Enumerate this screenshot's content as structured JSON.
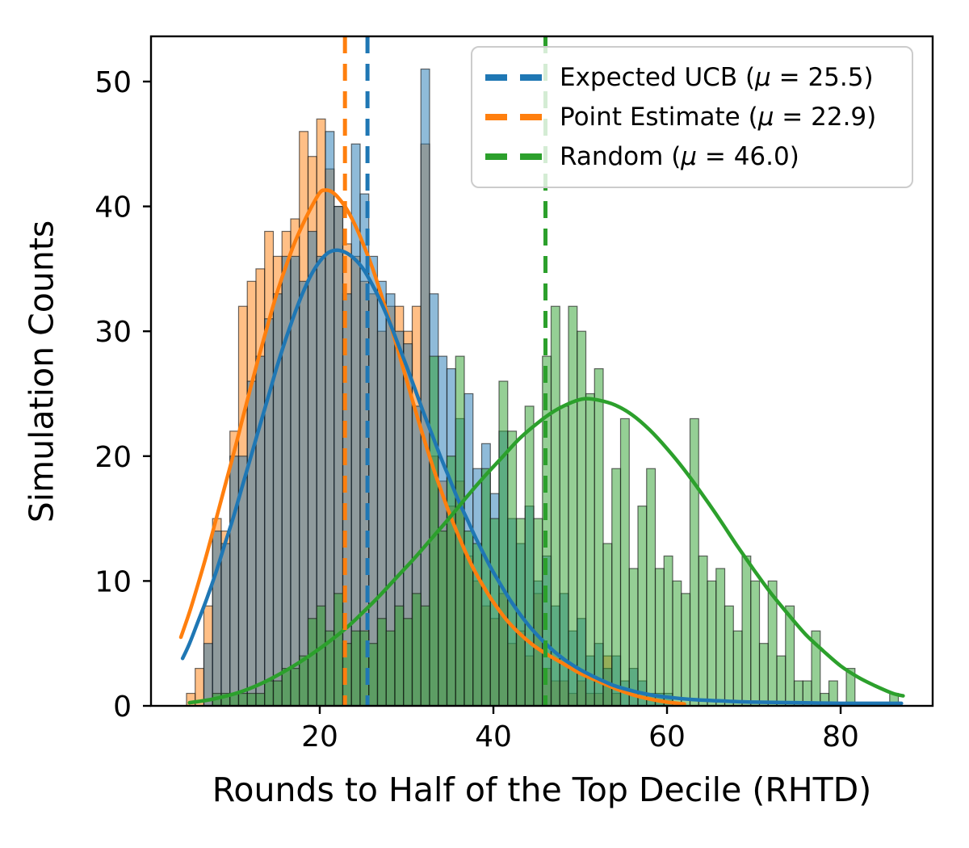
{
  "chart_data": {
    "type": "histogram+kde",
    "title": "",
    "xlabel": "Rounds to Half of the Top Decile (RHTD)",
    "ylabel": "Simulation Counts",
    "x_ticks": [
      20,
      40,
      60,
      80
    ],
    "y_ticks": [
      0,
      10,
      20,
      30,
      40,
      50
    ],
    "x_range": [
      0.56,
      90.6
    ],
    "y_range": [
      0,
      53.62
    ],
    "bin_width": 1,
    "bar_alpha": 0.5,
    "grid": false,
    "legend_position": "upper right",
    "draw_order": [
      "point_estimate",
      "expected_ucb",
      "random"
    ],
    "legend_order": [
      "expected_ucb",
      "point_estimate",
      "random"
    ],
    "series": {
      "expected_ucb": {
        "name": "Expected UCB",
        "legend_label": "Expected UCB (μ = 25.5)",
        "mean": 25.5,
        "color": "#1f77b4",
        "first_bin": 7,
        "counts": [
          5,
          14,
          13,
          20,
          20,
          26,
          28,
          31,
          33,
          36,
          36,
          34,
          38,
          36,
          46,
          40,
          33,
          45,
          41,
          36,
          34,
          33,
          30,
          29,
          24,
          51,
          33,
          28,
          27,
          23,
          25,
          19,
          21,
          17,
          22,
          15,
          13,
          16,
          10,
          12,
          8,
          9,
          6,
          7,
          4,
          5,
          3,
          4,
          2,
          3,
          2,
          1,
          1,
          1
        ],
        "kde": [
          [
            4.2,
            3.8
          ],
          [
            5,
            5
          ],
          [
            6,
            6.8
          ],
          [
            7,
            8.6
          ],
          [
            8,
            10.6
          ],
          [
            9,
            12.8
          ],
          [
            10,
            15
          ],
          [
            11,
            17.4
          ],
          [
            12,
            19.8
          ],
          [
            13,
            22.2
          ],
          [
            14,
            24.6
          ],
          [
            15,
            27
          ],
          [
            16,
            29.2
          ],
          [
            17,
            31.2
          ],
          [
            18,
            33
          ],
          [
            19,
            34.5
          ],
          [
            20,
            35.6
          ],
          [
            21,
            36.3
          ],
          [
            22,
            36.5
          ],
          [
            23,
            36.3
          ],
          [
            24,
            35.8
          ],
          [
            25,
            35
          ],
          [
            26,
            33.8
          ],
          [
            27,
            32.4
          ],
          [
            28,
            30.8
          ],
          [
            29,
            29
          ],
          [
            30,
            27.2
          ],
          [
            31,
            25.3
          ],
          [
            32,
            23.4
          ],
          [
            33,
            21.6
          ],
          [
            34,
            19.8
          ],
          [
            35,
            18.1
          ],
          [
            36,
            16.4
          ],
          [
            37,
            14.9
          ],
          [
            38,
            13.4
          ],
          [
            39,
            12
          ],
          [
            40,
            10.7
          ],
          [
            42,
            8.4
          ],
          [
            44,
            6.5
          ],
          [
            46,
            5
          ],
          [
            48,
            3.8
          ],
          [
            50,
            2.9
          ],
          [
            52,
            2.2
          ],
          [
            54,
            1.6
          ],
          [
            56,
            1.2
          ],
          [
            58,
            0.9
          ],
          [
            60,
            0.7
          ],
          [
            63,
            0.5
          ],
          [
            66,
            0.4
          ],
          [
            70,
            0.3
          ],
          [
            75,
            0.25
          ],
          [
            80,
            0.2
          ],
          [
            84,
            0.2
          ],
          [
            87,
            0.2
          ]
        ]
      },
      "point_estimate": {
        "name": "Point Estimate",
        "legend_label": "Point Estimate (μ = 22.9)",
        "mean": 22.9,
        "color": "#ff7f0e",
        "first_bin": 5,
        "counts": [
          1,
          3,
          8,
          15,
          14,
          22,
          32,
          34,
          35,
          38,
          36,
          38,
          39,
          46,
          44,
          47,
          43,
          40,
          37,
          36,
          34,
          33,
          30,
          32,
          32,
          30,
          32,
          45,
          20,
          18,
          16,
          18,
          12,
          10,
          8,
          7,
          9,
          5,
          6,
          4,
          9,
          3,
          2,
          2,
          1,
          2,
          1,
          1,
          4,
          1
        ],
        "kde": [
          [
            4,
            5.5
          ],
          [
            5,
            7.5
          ],
          [
            6,
            9.8
          ],
          [
            7,
            12.2
          ],
          [
            8,
            14.8
          ],
          [
            9,
            17.4
          ],
          [
            10,
            20
          ],
          [
            11,
            22.7
          ],
          [
            12,
            25.4
          ],
          [
            13,
            28
          ],
          [
            14,
            30.5
          ],
          [
            15,
            32.9
          ],
          [
            16,
            35
          ],
          [
            17,
            36.9
          ],
          [
            18,
            38.5
          ],
          [
            19,
            39.9
          ],
          [
            20,
            41.1
          ],
          [
            20.6,
            41.3
          ],
          [
            21.3,
            41.2
          ],
          [
            22,
            40.8
          ],
          [
            23,
            39.9
          ],
          [
            24,
            38.6
          ],
          [
            25,
            37
          ],
          [
            26,
            35.2
          ],
          [
            27,
            33.1
          ],
          [
            28,
            30.9
          ],
          [
            29,
            28.5
          ],
          [
            30,
            26.1
          ],
          [
            31,
            23.7
          ],
          [
            32,
            21.4
          ],
          [
            33,
            19.2
          ],
          [
            34,
            17.2
          ],
          [
            35,
            15.3
          ],
          [
            36,
            13.6
          ],
          [
            37,
            12
          ],
          [
            38,
            10.6
          ],
          [
            39,
            9.4
          ],
          [
            40,
            8.3
          ],
          [
            41.5,
            6.9
          ],
          [
            43,
            5.8
          ],
          [
            44.5,
            4.9
          ],
          [
            46,
            4.2
          ],
          [
            48,
            3.4
          ],
          [
            50,
            2.6
          ],
          [
            52,
            2
          ],
          [
            54,
            1.4
          ],
          [
            56,
            0.9
          ],
          [
            58,
            0.55
          ],
          [
            60,
            0.3
          ],
          [
            62,
            0.15
          ]
        ]
      },
      "random": {
        "name": "Random",
        "legend_label": "Random (μ = 46.0)",
        "mean": 46.0,
        "color": "#2ca02c",
        "first_bin": 8,
        "counts": [
          1,
          1,
          1,
          1,
          1,
          1,
          2,
          2,
          3,
          3,
          4,
          7,
          8,
          6,
          9,
          5,
          6,
          6,
          5,
          7,
          6,
          8,
          7,
          9,
          8,
          28,
          14,
          20,
          28,
          14,
          13,
          19,
          15,
          26,
          22,
          15,
          24,
          15,
          28,
          32,
          24,
          32,
          30,
          25,
          27,
          13,
          19,
          23,
          11,
          16,
          19,
          11,
          12,
          10,
          9,
          23,
          12,
          10,
          11,
          8,
          6,
          12,
          10,
          5,
          10,
          4,
          8,
          2,
          2,
          6,
          1,
          2,
          0,
          3,
          0,
          0,
          0,
          0,
          1
        ],
        "kde": [
          [
            5,
            0.25
          ],
          [
            7,
            0.45
          ],
          [
            9,
            0.75
          ],
          [
            11,
            1.15
          ],
          [
            13,
            1.7
          ],
          [
            15,
            2.4
          ],
          [
            17,
            3.2
          ],
          [
            19,
            4.1
          ],
          [
            21,
            5.1
          ],
          [
            23,
            6.2
          ],
          [
            25,
            7.5
          ],
          [
            27,
            8.9
          ],
          [
            29,
            10.4
          ],
          [
            31,
            11.9
          ],
          [
            33,
            13.5
          ],
          [
            35,
            15.1
          ],
          [
            37,
            16.8
          ],
          [
            39,
            18.4
          ],
          [
            41,
            19.9
          ],
          [
            43,
            21.4
          ],
          [
            45,
            22.6
          ],
          [
            47,
            23.6
          ],
          [
            49,
            24.3
          ],
          [
            50.5,
            24.6
          ],
          [
            52,
            24.5
          ],
          [
            54,
            24.1
          ],
          [
            56,
            23.3
          ],
          [
            58,
            22.1
          ],
          [
            60,
            20.6
          ],
          [
            62,
            18.9
          ],
          [
            64,
            17
          ],
          [
            66,
            15
          ],
          [
            68,
            12.9
          ],
          [
            70,
            10.9
          ],
          [
            72,
            9
          ],
          [
            74,
            7.3
          ],
          [
            76,
            5.7
          ],
          [
            78,
            4.4
          ],
          [
            80,
            3.2
          ],
          [
            82,
            2.3
          ],
          [
            84,
            1.6
          ],
          [
            86,
            1
          ],
          [
            87.2,
            0.8
          ]
        ]
      }
    },
    "mean_lines": [
      {
        "series": "point_estimate",
        "x": 22.9,
        "color": "#ff7f0e"
      },
      {
        "series": "expected_ucb",
        "x": 25.5,
        "color": "#1f77b4"
      },
      {
        "series": "random",
        "x": 46.0,
        "color": "#2ca02c"
      }
    ],
    "style": {
      "spine_color": "#000000",
      "tick_font_size": 36,
      "dash_pattern": "21 13",
      "kde_line_width": 4.5,
      "mean_line_width": 5
    }
  }
}
